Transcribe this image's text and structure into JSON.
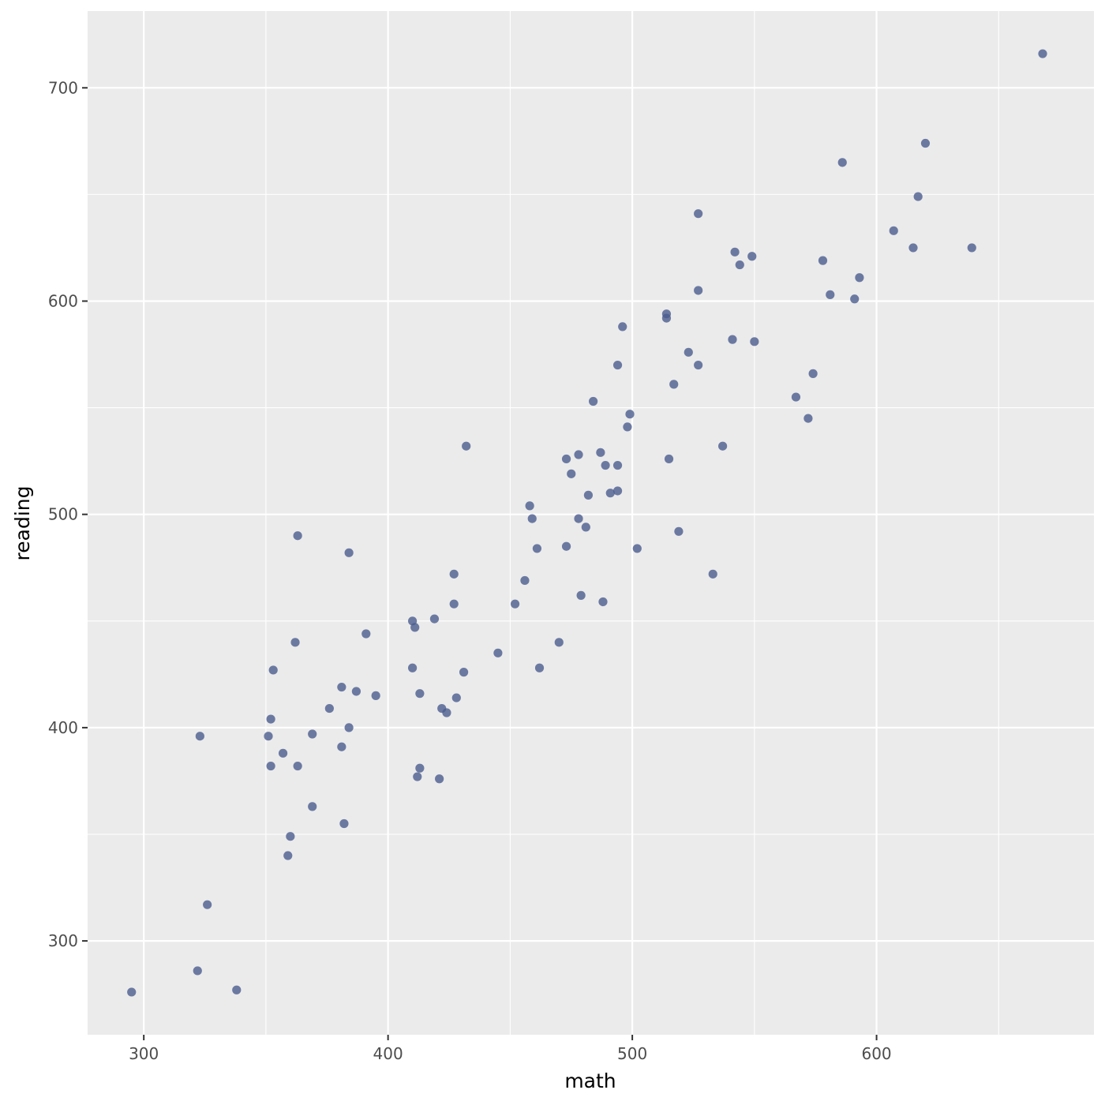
{
  "chart_data": {
    "type": "scatter",
    "title": "",
    "xlabel": "math",
    "ylabel": "reading",
    "xlim": [
      277,
      689
    ],
    "ylim": [
      256,
      736
    ],
    "x_ticks": [
      300,
      400,
      500,
      600
    ],
    "y_ticks": [
      300,
      400,
      500,
      600,
      700
    ],
    "x_tick_labels": [
      "300",
      "400",
      "500",
      "600"
    ],
    "y_tick_labels": [
      "300",
      "400",
      "500",
      "600",
      "700"
    ],
    "grid": true,
    "legend": "none",
    "colors": {
      "panel": "#ebebeb",
      "grid": "#ffffff",
      "point": "#4b5d8f",
      "tick_mark": "#333333"
    },
    "points": [
      {
        "x": 295,
        "y": 276
      },
      {
        "x": 322,
        "y": 286
      },
      {
        "x": 338,
        "y": 277
      },
      {
        "x": 326,
        "y": 317
      },
      {
        "x": 323,
        "y": 396
      },
      {
        "x": 351,
        "y": 396
      },
      {
        "x": 352,
        "y": 382
      },
      {
        "x": 352,
        "y": 404
      },
      {
        "x": 353,
        "y": 427
      },
      {
        "x": 357,
        "y": 388
      },
      {
        "x": 359,
        "y": 340
      },
      {
        "x": 360,
        "y": 349
      },
      {
        "x": 362,
        "y": 440
      },
      {
        "x": 363,
        "y": 382
      },
      {
        "x": 363,
        "y": 490
      },
      {
        "x": 369,
        "y": 363
      },
      {
        "x": 369,
        "y": 397
      },
      {
        "x": 376,
        "y": 409
      },
      {
        "x": 381,
        "y": 391
      },
      {
        "x": 381,
        "y": 419
      },
      {
        "x": 382,
        "y": 355
      },
      {
        "x": 384,
        "y": 400
      },
      {
        "x": 384,
        "y": 482
      },
      {
        "x": 387,
        "y": 417
      },
      {
        "x": 391,
        "y": 444
      },
      {
        "x": 395,
        "y": 415
      },
      {
        "x": 410,
        "y": 428
      },
      {
        "x": 410,
        "y": 450
      },
      {
        "x": 411,
        "y": 447
      },
      {
        "x": 412,
        "y": 377
      },
      {
        "x": 413,
        "y": 416
      },
      {
        "x": 413,
        "y": 381
      },
      {
        "x": 419,
        "y": 451
      },
      {
        "x": 421,
        "y": 376
      },
      {
        "x": 422,
        "y": 409
      },
      {
        "x": 424,
        "y": 407
      },
      {
        "x": 427,
        "y": 458
      },
      {
        "x": 427,
        "y": 472
      },
      {
        "x": 428,
        "y": 414
      },
      {
        "x": 431,
        "y": 426
      },
      {
        "x": 432,
        "y": 532
      },
      {
        "x": 445,
        "y": 435
      },
      {
        "x": 452,
        "y": 458
      },
      {
        "x": 456,
        "y": 469
      },
      {
        "x": 458,
        "y": 504
      },
      {
        "x": 459,
        "y": 498
      },
      {
        "x": 461,
        "y": 484
      },
      {
        "x": 462,
        "y": 428
      },
      {
        "x": 470,
        "y": 440
      },
      {
        "x": 473,
        "y": 526
      },
      {
        "x": 473,
        "y": 485
      },
      {
        "x": 475,
        "y": 519
      },
      {
        "x": 478,
        "y": 528
      },
      {
        "x": 478,
        "y": 498
      },
      {
        "x": 479,
        "y": 462
      },
      {
        "x": 481,
        "y": 494
      },
      {
        "x": 482,
        "y": 509
      },
      {
        "x": 484,
        "y": 553
      },
      {
        "x": 487,
        "y": 529
      },
      {
        "x": 488,
        "y": 459
      },
      {
        "x": 489,
        "y": 523
      },
      {
        "x": 491,
        "y": 510
      },
      {
        "x": 494,
        "y": 523
      },
      {
        "x": 494,
        "y": 511
      },
      {
        "x": 494,
        "y": 570
      },
      {
        "x": 496,
        "y": 588
      },
      {
        "x": 498,
        "y": 541
      },
      {
        "x": 499,
        "y": 547
      },
      {
        "x": 502,
        "y": 484
      },
      {
        "x": 514,
        "y": 594
      },
      {
        "x": 514,
        "y": 592
      },
      {
        "x": 515,
        "y": 526
      },
      {
        "x": 517,
        "y": 561
      },
      {
        "x": 519,
        "y": 492
      },
      {
        "x": 523,
        "y": 576
      },
      {
        "x": 527,
        "y": 570
      },
      {
        "x": 527,
        "y": 605
      },
      {
        "x": 527,
        "y": 641
      },
      {
        "x": 533,
        "y": 472
      },
      {
        "x": 537,
        "y": 532
      },
      {
        "x": 541,
        "y": 582
      },
      {
        "x": 542,
        "y": 623
      },
      {
        "x": 544,
        "y": 617
      },
      {
        "x": 549,
        "y": 621
      },
      {
        "x": 550,
        "y": 581
      },
      {
        "x": 567,
        "y": 555
      },
      {
        "x": 572,
        "y": 545
      },
      {
        "x": 574,
        "y": 566
      },
      {
        "x": 578,
        "y": 619
      },
      {
        "x": 581,
        "y": 603
      },
      {
        "x": 586,
        "y": 665
      },
      {
        "x": 591,
        "y": 601
      },
      {
        "x": 593,
        "y": 611
      },
      {
        "x": 607,
        "y": 633
      },
      {
        "x": 615,
        "y": 625
      },
      {
        "x": 617,
        "y": 649
      },
      {
        "x": 620,
        "y": 674
      },
      {
        "x": 639,
        "y": 625
      },
      {
        "x": 668,
        "y": 716
      }
    ]
  }
}
